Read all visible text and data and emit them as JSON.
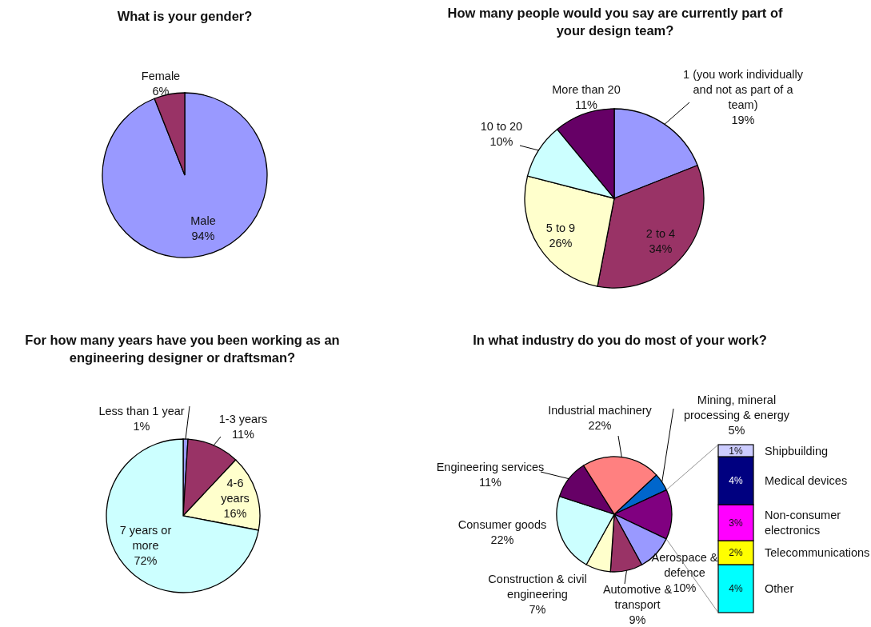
{
  "chart_data": [
    {
      "type": "pie",
      "title": "What is your gender?",
      "categories": [
        "Male",
        "Female"
      ],
      "values": [
        94,
        6
      ],
      "value_labels": [
        "94%",
        "6%"
      ],
      "colors": [
        "#9999ff",
        "#993366"
      ]
    },
    {
      "type": "pie",
      "title": "How many people would you say are currently part of your design team?",
      "categories": [
        "1 (you work individually and not as part of a team)",
        "2 to 4",
        "5 to 9",
        "10 to 20",
        "More than 20"
      ],
      "values": [
        19,
        34,
        26,
        10,
        11
      ],
      "value_labels": [
        "19%",
        "34%",
        "26%",
        "10%",
        "11%"
      ],
      "colors": [
        "#9999ff",
        "#993366",
        "#ffffcc",
        "#ccffff",
        "#660066"
      ]
    },
    {
      "type": "pie",
      "title": "For how many years have you been working as an engineering designer or draftsman?",
      "categories": [
        "Less than 1 year",
        "1-3 years",
        "4-6 years",
        "7 years or more"
      ],
      "values": [
        1,
        11,
        16,
        72
      ],
      "value_labels": [
        "1%",
        "11%",
        "16%",
        "72%"
      ],
      "colors": [
        "#9999ff",
        "#993366",
        "#ffffcc",
        "#ccffff"
      ]
    },
    {
      "type": "pie",
      "title": "In what industry do you do most of your work?",
      "categories": [
        "Mining, mineral processing & energy",
        null,
        "Aerospace & defence",
        "Automotive & transport",
        "Construction & civil engineering",
        "Consumer goods",
        "Engineering services",
        "Industrial machinery"
      ],
      "values": [
        5,
        14,
        10,
        9,
        7,
        22,
        11,
        22
      ],
      "value_labels": [
        "5%",
        null,
        "10%",
        "9%",
        "7%",
        "22%",
        "11%",
        "22%"
      ],
      "colors": [
        "#0066cc",
        "#800080",
        "#9999ff",
        "#993366",
        "#ffffcc",
        "#ccffff",
        "#660066",
        "#ff8080"
      ]
    },
    {
      "type": "bar",
      "stacked": true,
      "categories": [
        null
      ],
      "series": [
        {
          "name": "Other",
          "color": "#00ffff",
          "values": [
            4
          ],
          "value_labels": [
            "4%"
          ]
        },
        {
          "name": "Telecommunications",
          "color": "#ffff00",
          "values": [
            2
          ],
          "value_labels": [
            "2%"
          ]
        },
        {
          "name": "Non-consumer electronics",
          "color": "#ff00ff",
          "values": [
            3
          ],
          "value_labels": [
            "3%"
          ]
        },
        {
          "name": "Medical devices",
          "color": "#000080",
          "values": [
            4
          ],
          "value_labels": [
            "4%"
          ]
        },
        {
          "name": "Shipbuilding",
          "color": "#ccccff",
          "values": [
            1
          ],
          "value_labels": [
            "1%"
          ]
        }
      ]
    }
  ]
}
